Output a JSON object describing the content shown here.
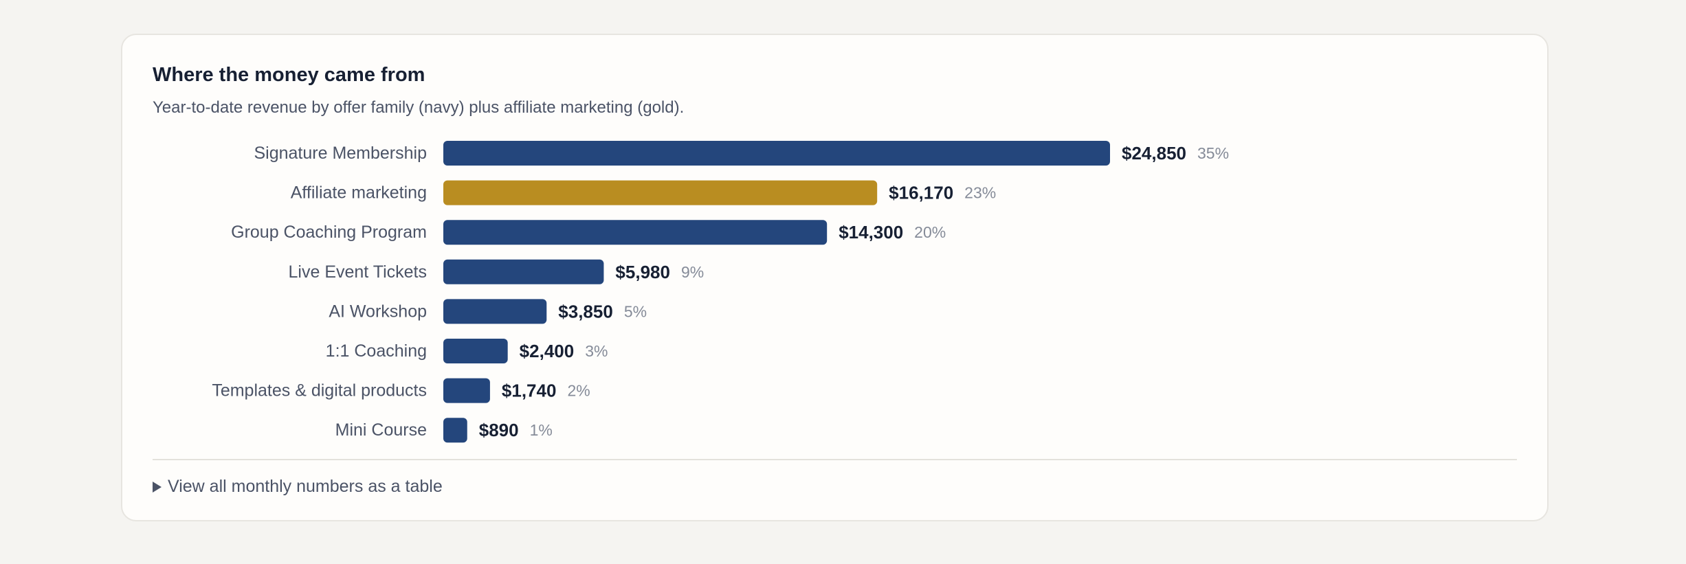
{
  "card": {
    "title": "Where the money came from",
    "subtitle": "Year-to-date revenue by offer family (navy) plus affiliate marketing (gold).",
    "toggle_label": "View all monthly numbers as a table",
    "toggle_icon": "triangle-right-icon"
  },
  "colors": {
    "offer": "#24467c",
    "affiliate": "#b98d21"
  },
  "chart_data": {
    "type": "bar",
    "orientation": "horizontal",
    "title": "Where the money came from",
    "subtitle": "Year-to-date revenue by offer family (navy) plus affiliate marketing (gold).",
    "categories": [
      "Signature Membership",
      "Affiliate marketing",
      "Group Coaching Program",
      "Live Event Tickets",
      "AI Workshop",
      "1:1 Coaching",
      "Templates & digital products",
      "Mini Course"
    ],
    "values": [
      24850,
      16170,
      14300,
      5980,
      3850,
      2400,
      1740,
      890
    ],
    "value_labels": [
      "$24,850",
      "$16,170",
      "$14,300",
      "$5,980",
      "$3,850",
      "$2,400",
      "$1,740",
      "$890"
    ],
    "percent_labels": [
      "35%",
      "23%",
      "20%",
      "9%",
      "5%",
      "3%",
      "2%",
      "1%"
    ],
    "groups": [
      "offer",
      "affiliate",
      "offer",
      "offer",
      "offer",
      "offer",
      "offer",
      "offer"
    ],
    "xlim": [
      0,
      24850
    ],
    "grid": false,
    "legend": "none"
  }
}
